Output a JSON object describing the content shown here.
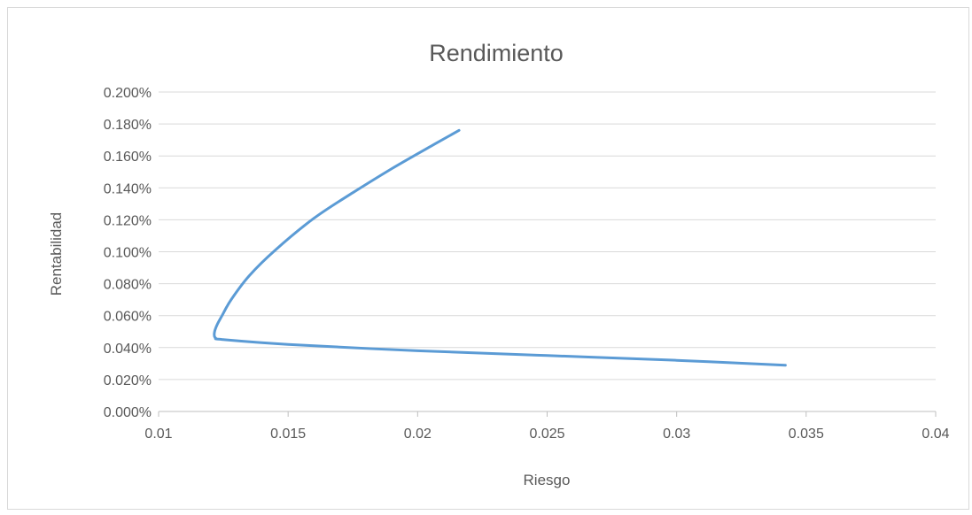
{
  "chart_data": {
    "type": "line",
    "title": "Rendimiento",
    "xlabel": "Riesgo",
    "ylabel": "Rentabilidad",
    "xlim": [
      0.01,
      0.04
    ],
    "ylim": [
      0,
      0.002
    ],
    "x_ticks": [
      0.01,
      0.015,
      0.02,
      0.025,
      0.03,
      0.035,
      0.04
    ],
    "x_tick_labels": [
      "0.01",
      "0.015",
      "0.02",
      "0.025",
      "0.03",
      "0.035",
      "0.04"
    ],
    "y_ticks": [
      0,
      0.0002,
      0.0004,
      0.0006,
      0.0008,
      0.001,
      0.0012,
      0.0014,
      0.0016,
      0.0018,
      0.002
    ],
    "y_tick_labels": [
      "0.000%",
      "0.020%",
      "0.040%",
      "0.060%",
      "0.080%",
      "0.100%",
      "0.120%",
      "0.140%",
      "0.160%",
      "0.180%",
      "0.200%"
    ],
    "grid": true,
    "line_color": "#5b9bd5",
    "series": [
      {
        "x": [
          0.0342,
          0.03,
          0.025,
          0.02,
          0.015,
          0.0125,
          0.0122,
          0.01215,
          0.01225,
          0.01245,
          0.0128,
          0.0135,
          0.0145,
          0.016,
          0.0175,
          0.019,
          0.0205,
          0.0216
        ],
        "y": [
          0.00029,
          0.00032,
          0.00035,
          0.00038,
          0.00042,
          0.00045,
          0.00046,
          0.00049,
          0.00054,
          0.0006,
          0.0007,
          0.00085,
          0.00101,
          0.00121,
          0.00137,
          0.00152,
          0.00166,
          0.00176
        ]
      }
    ]
  }
}
